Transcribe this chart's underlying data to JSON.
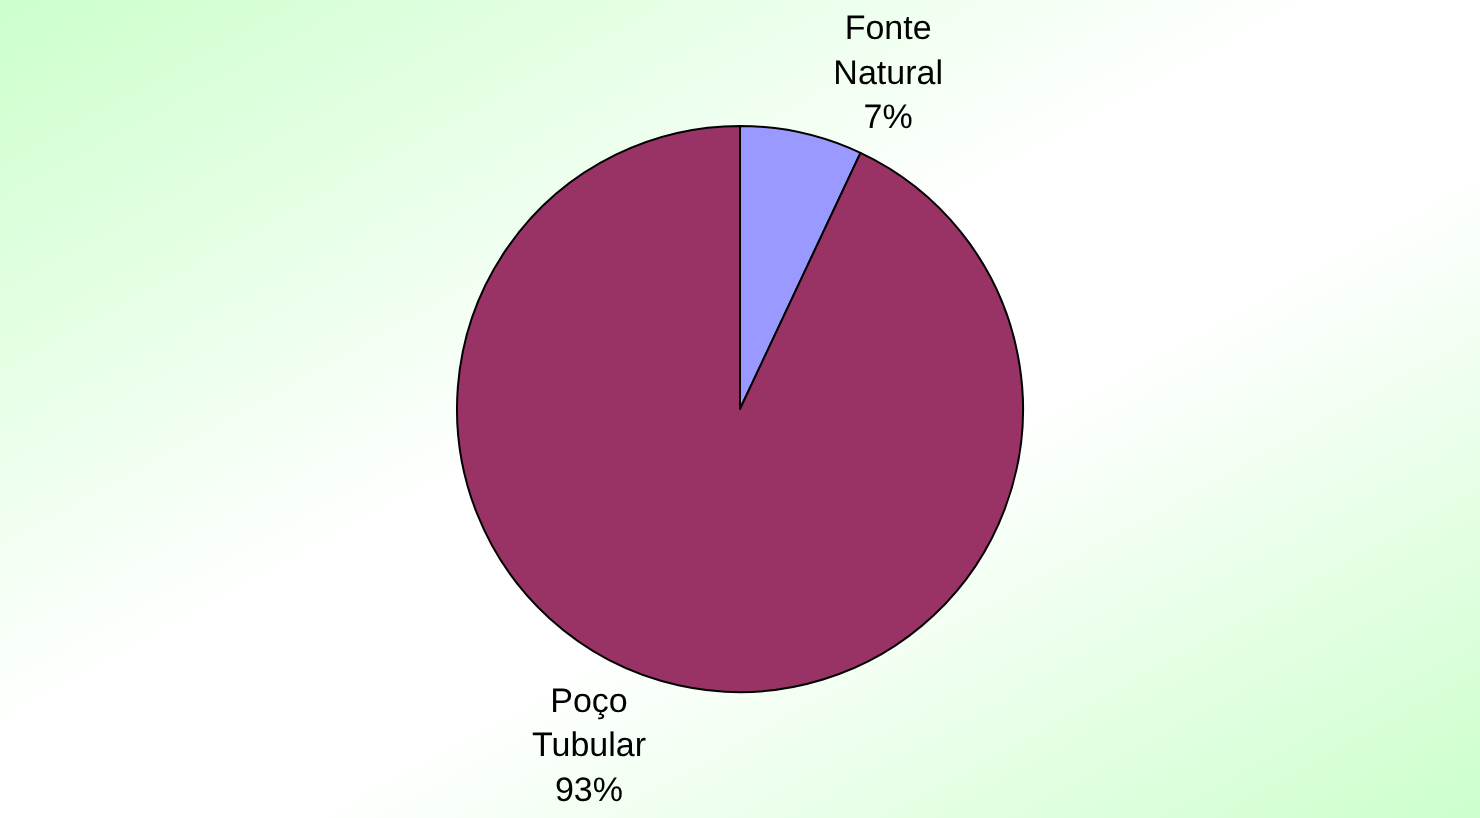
{
  "chart_data": {
    "type": "pie",
    "categories": [
      "Fonte Natural",
      "Poço Tubular"
    ],
    "values": [
      7,
      93
    ],
    "value_labels": [
      "7%",
      "93%"
    ],
    "colors": [
      "#9999ff",
      "#993366"
    ],
    "legend": false
  }
}
